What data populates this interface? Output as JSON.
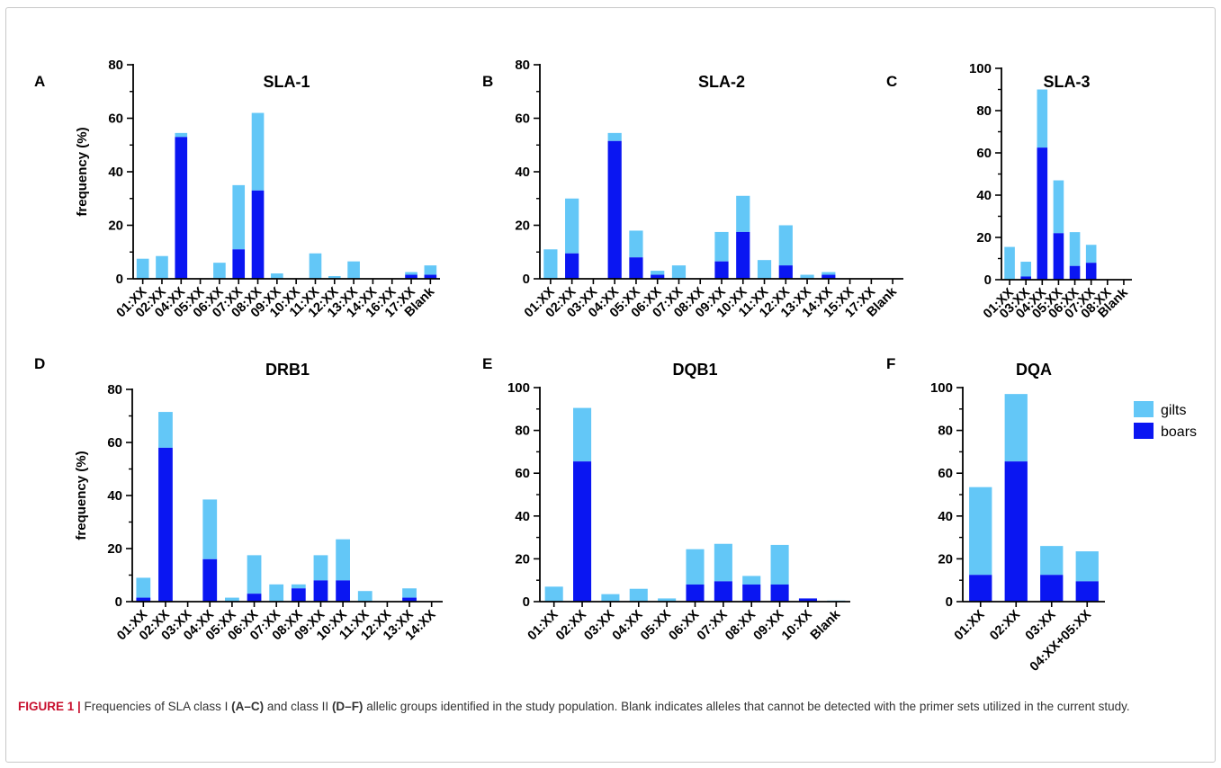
{
  "chart_data": [
    {
      "letter": "A",
      "title": "SLA-1",
      "type": "bar",
      "stacked": true,
      "ylabel": "frequency (%)",
      "ylim": [
        0,
        80
      ],
      "yticks": [
        0,
        20,
        40,
        60,
        80
      ],
      "categories": [
        "01:XX",
        "02:XX",
        "04:XX",
        "05:XX",
        "06:XX",
        "07:XX",
        "08:XX",
        "09:XX",
        "10:XX",
        "11:XX",
        "12:XX",
        "13:XX",
        "14:XX",
        "16:XX",
        "17:XX",
        "Blank"
      ],
      "series": [
        {
          "name": "boars",
          "values": [
            0,
            0,
            53,
            0,
            0,
            11,
            33,
            0,
            0,
            0,
            0,
            0,
            0,
            0,
            1.5,
            1.5
          ]
        },
        {
          "name": "gilts",
          "values": [
            7.5,
            8.5,
            1.5,
            0,
            6,
            24,
            29,
            2,
            0,
            9.5,
            1,
            6.5,
            0,
            0,
            1,
            3.5
          ]
        }
      ]
    },
    {
      "letter": "B",
      "title": "SLA-2",
      "type": "bar",
      "stacked": true,
      "ylabel": "",
      "ylim": [
        0,
        80
      ],
      "yticks": [
        0,
        20,
        40,
        60,
        80
      ],
      "categories": [
        "01:XX",
        "02:XX",
        "03:XX",
        "04:XX",
        "05:XX",
        "06:XX",
        "07:XX",
        "08:XX",
        "09:XX",
        "10:XX",
        "11:XX",
        "12:XX",
        "13:XX",
        "14:XX",
        "15:XX",
        "17:XX",
        "Blank"
      ],
      "series": [
        {
          "name": "boars",
          "values": [
            0,
            9.5,
            0,
            51.5,
            8,
            1.5,
            0,
            0,
            6.5,
            17.5,
            0,
            5,
            0,
            1.5,
            0,
            0,
            0
          ]
        },
        {
          "name": "gilts",
          "values": [
            11,
            20.5,
            0,
            3,
            10,
            1.5,
            5,
            0,
            11,
            13.5,
            7,
            15,
            1.5,
            1,
            0,
            0,
            0
          ]
        }
      ]
    },
    {
      "letter": "C",
      "title": "SLA-3",
      "type": "bar",
      "stacked": true,
      "ylabel": "",
      "ylim": [
        0,
        100
      ],
      "yticks": [
        0,
        20,
        40,
        60,
        80,
        100
      ],
      "categories": [
        "01:XX",
        "03:XX",
        "04:XX",
        "05:XX",
        "06:XX",
        "07:XX",
        "08:XX",
        "Blank"
      ],
      "series": [
        {
          "name": "boars",
          "values": [
            0,
            1.5,
            62.5,
            22,
            6.5,
            8,
            0,
            0
          ]
        },
        {
          "name": "gilts",
          "values": [
            15.5,
            7,
            27.5,
            25,
            16,
            8.5,
            0,
            0
          ]
        }
      ]
    },
    {
      "letter": "D",
      "title": "DRB1",
      "type": "bar",
      "stacked": true,
      "ylabel": "frequency (%)",
      "ylim": [
        0,
        80
      ],
      "yticks": [
        0,
        20,
        40,
        60,
        80
      ],
      "categories": [
        "01:XX",
        "02:XX",
        "03:XX",
        "04:XX",
        "05:XX",
        "06:XX",
        "07:XX",
        "08:XX",
        "09:XX",
        "10:XX",
        "11:XX",
        "12:XX",
        "13:XX",
        "14:XX"
      ],
      "series": [
        {
          "name": "boars",
          "values": [
            1.5,
            58,
            0,
            16,
            0,
            3,
            0,
            5,
            8,
            8,
            0,
            0,
            1.5,
            0
          ]
        },
        {
          "name": "gilts",
          "values": [
            7.5,
            13.5,
            0,
            22.5,
            1.5,
            14.5,
            6.5,
            1.5,
            9.5,
            15.5,
            4,
            0,
            3.5,
            0
          ]
        }
      ]
    },
    {
      "letter": "E",
      "title": "DQB1",
      "type": "bar",
      "stacked": true,
      "ylabel": "",
      "ylim": [
        0,
        100
      ],
      "yticks": [
        0,
        20,
        40,
        60,
        80,
        100
      ],
      "categories": [
        "01:XX",
        "02:XX",
        "03:XX",
        "04:XX",
        "05:XX",
        "06:XX",
        "07:XX",
        "08:XX",
        "09:XX",
        "10:XX",
        "Blank"
      ],
      "series": [
        {
          "name": "boars",
          "values": [
            0,
            65.5,
            0,
            0,
            0,
            8,
            9.5,
            8,
            8,
            1.5,
            0
          ]
        },
        {
          "name": "gilts",
          "values": [
            7,
            25,
            3.5,
            6,
            1.5,
            16.5,
            17.5,
            4,
            18.5,
            0,
            0.5
          ]
        }
      ]
    },
    {
      "letter": "F",
      "title": "DQA",
      "type": "bar",
      "stacked": true,
      "ylabel": "",
      "ylim": [
        0,
        100
      ],
      "yticks": [
        0,
        20,
        40,
        60,
        80,
        100
      ],
      "categories": [
        "01:XX",
        "02:XX",
        "03:XX",
        "04:XX+05:XX"
      ],
      "series": [
        {
          "name": "boars",
          "values": [
            12.5,
            65.5,
            12.5,
            9.5
          ]
        },
        {
          "name": "gilts",
          "values": [
            41,
            31.5,
            13.5,
            14
          ]
        }
      ]
    }
  ],
  "legend": {
    "items": [
      {
        "label": "gilts",
        "color": "#63c7f7"
      },
      {
        "label": "boars",
        "color": "#0a16f2"
      }
    ]
  },
  "colors": {
    "boars": "#0a16f2",
    "gilts": "#63c7f7"
  },
  "caption": {
    "label": "FIGURE 1 |",
    "t1": " Frequencies of SLA class I ",
    "b1": "(A–C)",
    "t2": " and class II ",
    "b2": "(D–F)",
    "t3": " allelic groups identified in the study population. Blank indicates alleles that cannot be detected with the primer sets utilized in the current study."
  }
}
